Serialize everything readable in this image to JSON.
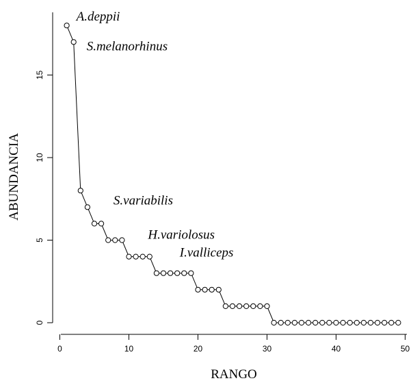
{
  "chart_data": {
    "type": "line",
    "xlabel": "RANGO",
    "ylabel": "ABUNDANCIA",
    "xlim": [
      0,
      50
    ],
    "ylim": [
      0,
      18
    ],
    "xticks": [
      0,
      10,
      20,
      30,
      40,
      50
    ],
    "yticks": [
      0,
      5,
      10,
      15
    ],
    "grid": false,
    "marker": "open-circle",
    "series": [
      {
        "x": [
          1,
          2,
          3,
          4,
          5,
          6,
          7,
          8,
          9,
          10,
          11,
          12,
          13,
          14,
          15,
          16,
          17,
          18,
          19,
          20,
          21,
          22,
          23,
          24,
          25,
          26,
          27,
          28,
          29,
          30,
          31,
          32,
          33,
          34,
          35,
          36,
          37,
          38,
          39,
          40,
          41,
          42,
          43,
          44,
          45,
          46,
          47,
          48,
          49
        ],
        "values": [
          18,
          17,
          8,
          7,
          6,
          6,
          5,
          5,
          5,
          4,
          4,
          4,
          4,
          3,
          3,
          3,
          3,
          3,
          3,
          2,
          2,
          2,
          2,
          1,
          1,
          1,
          1,
          1,
          1,
          1,
          0,
          0,
          0,
          0,
          0,
          0,
          0,
          0,
          0,
          0,
          0,
          0,
          0,
          0,
          0,
          0,
          0,
          0,
          0
        ]
      }
    ],
    "annotations": [
      {
        "text": "A.deppii",
        "x": 1,
        "y": 18
      },
      {
        "text": "S.melanorhinus",
        "x": 2,
        "y": 17
      },
      {
        "text": "S.variabilis",
        "x": 4,
        "y": 7
      },
      {
        "text": "H.variolosus",
        "x": 9,
        "y": 5
      },
      {
        "text": "I.valliceps",
        "x": 13,
        "y": 4
      }
    ]
  }
}
